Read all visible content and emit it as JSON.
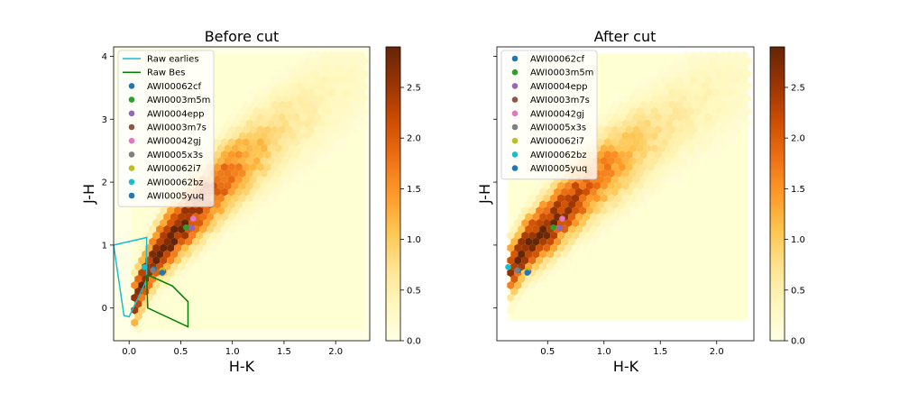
{
  "chart_data": [
    {
      "type": "heatmap",
      "title": "Before cut",
      "xlabel": "H-K",
      "ylabel": "J-H",
      "xlim": [
        -0.15,
        2.33
      ],
      "ylim": [
        -0.52,
        4.15
      ],
      "xticks": [
        {
          "v": 0.0,
          "label": "0.0"
        },
        {
          "v": 0.5,
          "label": "0.5"
        },
        {
          "v": 1.0,
          "label": "1.0"
        },
        {
          "v": 1.5,
          "label": "1.5"
        },
        {
          "v": 2.0,
          "label": "2.0"
        }
      ],
      "yticks": [
        {
          "v": 0,
          "label": "0"
        },
        {
          "v": 1,
          "label": "1"
        },
        {
          "v": 2,
          "label": "2"
        },
        {
          "v": 3,
          "label": "3"
        },
        {
          "v": 4,
          "label": "4"
        }
      ],
      "colorbar": {
        "min": 0.0,
        "max": 2.9,
        "ticks": [
          {
            "v": 0.0,
            "label": "0.0"
          },
          {
            "v": 0.5,
            "label": "0.5"
          },
          {
            "v": 1.0,
            "label": "1.0"
          },
          {
            "v": 1.5,
            "label": "1.5"
          },
          {
            "v": 2.0,
            "label": "2.0"
          },
          {
            "v": 2.5,
            "label": "2.5"
          }
        ],
        "colormap": "YlOrBr"
      },
      "density_region": {
        "x_range": [
          0.02,
          2.28
        ],
        "y_range": [
          -0.35,
          4.05
        ]
      },
      "density_ridge": [
        {
          "x": 0.0,
          "y": -0.1
        },
        {
          "x": 0.15,
          "y": 0.5
        },
        {
          "x": 0.3,
          "y": 0.95
        },
        {
          "x": 0.5,
          "y": 1.3
        },
        {
          "x": 0.75,
          "y": 1.75
        },
        {
          "x": 1.0,
          "y": 2.15
        },
        {
          "x": 1.3,
          "y": 2.55
        },
        {
          "x": 1.6,
          "y": 2.95
        },
        {
          "x": 1.9,
          "y": 3.3
        },
        {
          "x": 2.2,
          "y": 3.6
        }
      ],
      "density_peak": {
        "x": 0.33,
        "y": 0.95,
        "value": 2.9
      },
      "lines": [
        {
          "name": "Raw earlies",
          "color": "#17becf",
          "points": [
            [
              -0.15,
              1.0
            ],
            [
              0.17,
              1.12
            ],
            [
              0.17,
              0.45
            ],
            [
              0.0,
              -0.14
            ],
            [
              -0.05,
              -0.12
            ],
            [
              -0.15,
              1.0
            ]
          ]
        },
        {
          "name": "Raw Bes",
          "color": "#008000",
          "points": [
            [
              0.17,
              0.52
            ],
            [
              0.19,
              0.52
            ],
            [
              0.42,
              0.35
            ],
            [
              0.57,
              0.1
            ],
            [
              0.57,
              -0.3
            ],
            [
              0.18,
              0.0
            ],
            [
              0.17,
              0.52
            ]
          ]
        }
      ],
      "points": [
        {
          "name": "AWI00062cf",
          "color": "#1f77b4",
          "x": 0.24,
          "y": 0.62
        },
        {
          "name": "AWI0003m5m",
          "color": "#2ca02c",
          "x": 0.55,
          "y": 1.28
        },
        {
          "name": "AWI0004epp",
          "color": "#9467bd",
          "x": 0.61,
          "y": 1.27
        },
        {
          "name": "AWI0003m7s",
          "color": "#8c564b",
          "x": 0.33,
          "y": 0.58
        },
        {
          "name": "AWI00042gj",
          "color": "#e377c2",
          "x": 0.62,
          "y": 1.42
        },
        {
          "name": "AWI0005x3s",
          "color": "#7f7f7f",
          "x": 0.23,
          "y": 0.6
        },
        {
          "name": "AWI00062i7",
          "color": "#bcbd22",
          "x": 0.32,
          "y": 0.6
        },
        {
          "name": "AWI00062bz",
          "color": "#17becf",
          "x": 0.15,
          "y": 0.65
        },
        {
          "name": "AWI0005yuq",
          "color": "#1f77b4",
          "x": 0.32,
          "y": 0.56
        }
      ],
      "legend": {
        "placement": "top-left",
        "entries": [
          "Raw earlies",
          "Raw Bes",
          "AWI00062cf",
          "AWI0003m5m",
          "AWI0004epp",
          "AWI0003m7s",
          "AWI00042gj",
          "AWI0005x3s",
          "AWI00062i7",
          "AWI00062bz",
          "AWI0005yuq"
        ]
      }
    },
    {
      "type": "heatmap",
      "title": "After cut",
      "xlabel": "H-K",
      "ylabel": "J-H",
      "xlim": [
        0.05,
        2.33
      ],
      "ylim": [
        -0.52,
        4.15
      ],
      "xticks": [
        {
          "v": 0.5,
          "label": "0.5"
        },
        {
          "v": 1.0,
          "label": "1.0"
        },
        {
          "v": 1.5,
          "label": "1.5"
        },
        {
          "v": 2.0,
          "label": "2.0"
        }
      ],
      "yticks": [
        {
          "v": 0,
          "label": ""
        },
        {
          "v": 1,
          "label": ""
        },
        {
          "v": 2,
          "label": ""
        },
        {
          "v": 3,
          "label": ""
        },
        {
          "v": 4,
          "label": ""
        }
      ],
      "colorbar": {
        "min": 0.0,
        "max": 2.9,
        "ticks": [
          {
            "v": 0.0,
            "label": "0.0"
          },
          {
            "v": 0.5,
            "label": "0.5"
          },
          {
            "v": 1.0,
            "label": "1.0"
          },
          {
            "v": 1.5,
            "label": "1.5"
          },
          {
            "v": 2.0,
            "label": "2.0"
          },
          {
            "v": 2.5,
            "label": "2.5"
          }
        ],
        "colormap": "YlOrBr"
      },
      "density_region": {
        "x_range": [
          0.15,
          2.28
        ],
        "y_range": [
          -0.2,
          4.05
        ]
      },
      "density_ridge": [
        {
          "x": 0.15,
          "y": 0.55
        },
        {
          "x": 0.3,
          "y": 0.95
        },
        {
          "x": 0.5,
          "y": 1.3
        },
        {
          "x": 0.75,
          "y": 1.75
        },
        {
          "x": 1.0,
          "y": 2.15
        },
        {
          "x": 1.3,
          "y": 2.55
        },
        {
          "x": 1.6,
          "y": 2.95
        },
        {
          "x": 1.9,
          "y": 3.3
        },
        {
          "x": 2.2,
          "y": 3.6
        }
      ],
      "density_peak": {
        "x": 0.33,
        "y": 0.95,
        "value": 2.9
      },
      "lines": [],
      "points": [
        {
          "name": "AWI00062cf",
          "color": "#1f77b4",
          "x": 0.24,
          "y": 0.6
        },
        {
          "name": "AWI0003m5m",
          "color": "#2ca02c",
          "x": 0.55,
          "y": 1.28
        },
        {
          "name": "AWI0004epp",
          "color": "#9467bd",
          "x": 0.61,
          "y": 1.27
        },
        {
          "name": "AWI0003m7s",
          "color": "#8c564b",
          "x": 0.33,
          "y": 0.58
        },
        {
          "name": "AWI00042gj",
          "color": "#e377c2",
          "x": 0.63,
          "y": 1.42
        },
        {
          "name": "AWI0005x3s",
          "color": "#7f7f7f",
          "x": 0.23,
          "y": 0.6
        },
        {
          "name": "AWI00062i7",
          "color": "#bcbd22",
          "x": 0.32,
          "y": 0.6
        },
        {
          "name": "AWI00062bz",
          "color": "#17becf",
          "x": 0.15,
          "y": 0.65
        },
        {
          "name": "AWI0005yuq",
          "color": "#1f77b4",
          "x": 0.32,
          "y": 0.56
        }
      ],
      "legend": {
        "placement": "top-left",
        "entries": [
          "AWI00062cf",
          "AWI0003m5m",
          "AWI0004epp",
          "AWI0003m7s",
          "AWI00042gj",
          "AWI0005x3s",
          "AWI00062i7",
          "AWI00062bz",
          "AWI0005yuq"
        ]
      }
    }
  ]
}
